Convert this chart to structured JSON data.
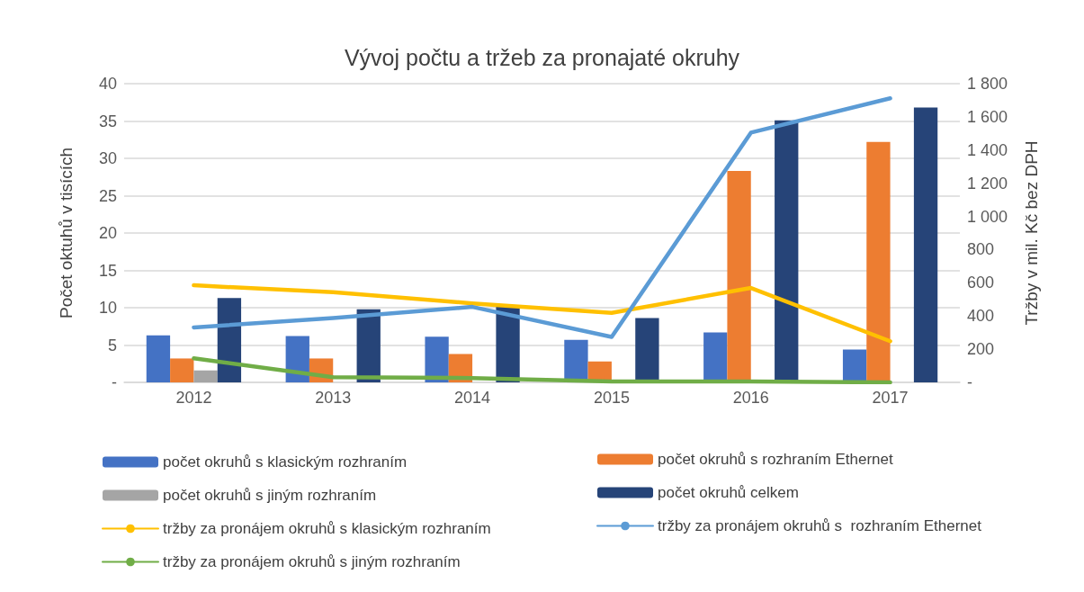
{
  "chart_data": {
    "type": "bar",
    "title": "Vývoj počtu a tržeb za pronajaté okruhy",
    "ylabel": "Počet oktuhů v tisících",
    "y2label": "Tržby v mil. Kč bez DPH",
    "categories": [
      "2012",
      "2013",
      "2014",
      "2015",
      "2016",
      "2017"
    ],
    "series": [
      {
        "name": "počet okruhů s klasickým rozhraním",
        "color": "#4472c4",
        "values": [
          6.3,
          6.2,
          6.1,
          5.7,
          6.7,
          4.4
        ]
      },
      {
        "name": "počet okruhů s rozhraním Ethernet",
        "color": "#ed7d31",
        "values": [
          3.2,
          3.2,
          3.8,
          2.8,
          28.3,
          32.2
        ]
      },
      {
        "name": "počet okruhů s jiným rozhraním",
        "color": "#a5a5a5",
        "values": [
          1.6,
          0,
          0,
          0,
          0,
          0
        ]
      },
      {
        "name": "počet okruhů celkem",
        "color": "#264478",
        "values": [
          11.3,
          9.8,
          10.3,
          8.6,
          35.1,
          36.8
        ]
      },
      {
        "name": "tržby za pronájem okruhů s klasickým rozhraním",
        "type": "line",
        "axis": "y2",
        "color": "#ffc000",
        "values": [
          585,
          543,
          476,
          419,
          569,
          248
        ]
      },
      {
        "name": "tržby za pronájem okruhů s  rozhraním Ethernet",
        "type": "line",
        "axis": "y2",
        "color": "#5b9bd5",
        "values": [
          331,
          388,
          455,
          274,
          1505,
          1712
        ]
      },
      {
        "name": "tržby za pronájem okruhů s jiným rozhraním",
        "type": "line",
        "axis": "y2",
        "color": "#70ad47",
        "values": [
          145,
          31,
          26,
          5,
          5,
          0
        ]
      }
    ],
    "ylim": [
      0,
      40
    ],
    "yticks": [
      {
        "value": 0,
        "label": "-"
      },
      5,
      10,
      15,
      20,
      25,
      30,
      35,
      40
    ],
    "y2lim": [
      0,
      1800
    ],
    "y2ticks": [
      {
        "value": 0,
        "label": "-"
      },
      200,
      400,
      600,
      800,
      {
        "value": 1000,
        "label": "1 000"
      },
      {
        "value": 1200,
        "label": "1 200"
      },
      {
        "value": 1400,
        "label": "1 400"
      },
      {
        "value": 1600,
        "label": "1 600"
      },
      {
        "value": 1800,
        "label": "1 800"
      }
    ],
    "grid": "y",
    "legend": "bottom",
    "marker": "none",
    "line_style": "solid"
  }
}
